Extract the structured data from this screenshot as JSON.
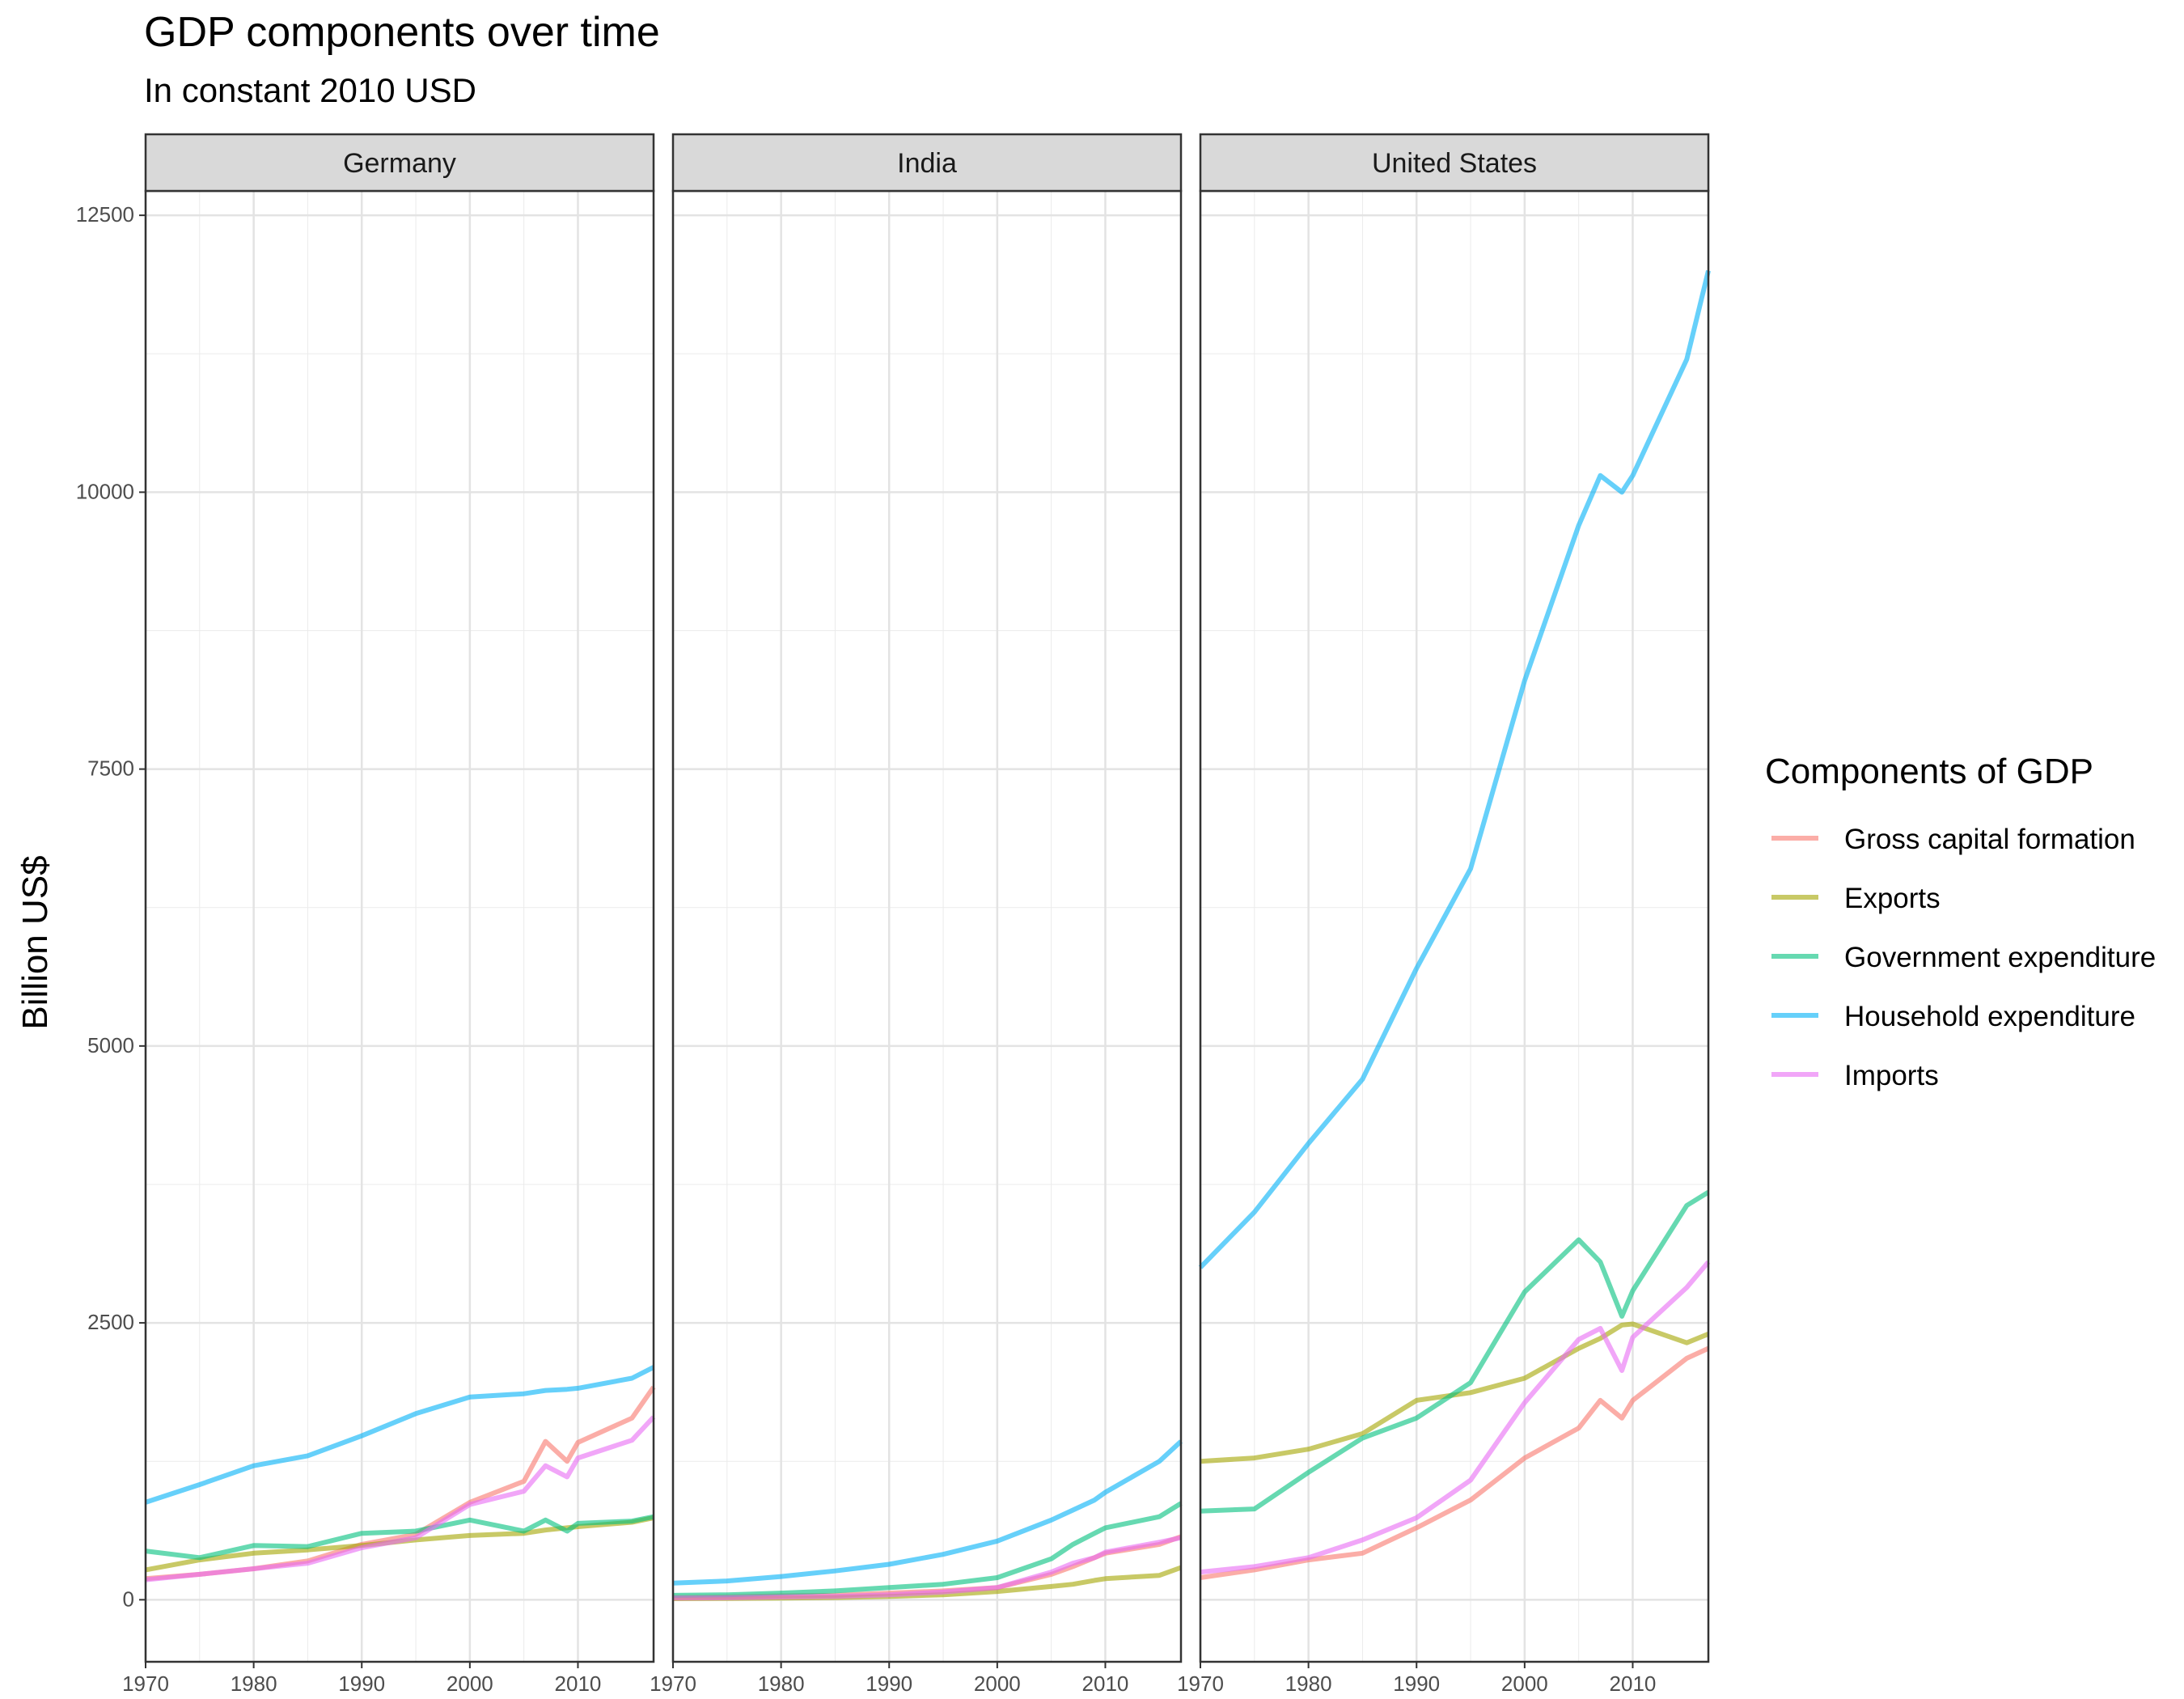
{
  "title": "GDP components over time",
  "subtitle": "In constant 2010 USD",
  "ylabel": "Billion US$",
  "legend": {
    "title": "Components of GDP",
    "position": "right",
    "items": [
      {
        "name": "Gross capital formation",
        "color": "#F8766D"
      },
      {
        "name": "Exports",
        "color": "#A3A500"
      },
      {
        "name": "Government expenditure",
        "color": "#00BF7D"
      },
      {
        "name": "Household expenditure",
        "color": "#00B0F6"
      },
      {
        "name": "Imports",
        "color": "#E76BF3"
      }
    ]
  },
  "chart_data": {
    "type": "line",
    "facets": [
      "Germany",
      "India",
      "United States"
    ],
    "xlim": [
      1970,
      2017
    ],
    "ylim": [
      -560,
      12720
    ],
    "xticks": [
      1970,
      1980,
      1990,
      2000,
      2010
    ],
    "yticks": [
      0,
      2500,
      5000,
      7500,
      10000,
      12500
    ],
    "grid": true,
    "line_opacity": 0.6,
    "x": [
      1970,
      1975,
      1980,
      1985,
      1990,
      1995,
      2000,
      2005,
      2007,
      2009,
      2010,
      2015,
      2017
    ],
    "panels": [
      {
        "facet": "Germany",
        "series": [
          {
            "name": "Gross capital formation",
            "values": [
              190,
              230,
              280,
              350,
              500,
              590,
              880,
              1070,
              1430,
              1250,
              1420,
              1640,
              1920
            ]
          },
          {
            "name": "Exports",
            "values": [
              270,
              360,
              420,
              450,
              490,
              540,
              580,
              600,
              630,
              650,
              660,
              700,
              740
            ]
          },
          {
            "name": "Government expenditure",
            "values": [
              440,
              380,
              490,
              480,
              600,
              620,
              720,
              620,
              720,
              620,
              690,
              710,
              750
            ]
          },
          {
            "name": "Household expenditure",
            "values": [
              880,
              1040,
              1210,
              1300,
              1480,
              1680,
              1830,
              1860,
              1890,
              1900,
              1910,
              2000,
              2100
            ]
          },
          {
            "name": "Imports",
            "values": [
              180,
              230,
              280,
              330,
              470,
              560,
              860,
              980,
              1210,
              1110,
              1280,
              1440,
              1650
            ]
          }
        ]
      },
      {
        "facet": "India",
        "series": [
          {
            "name": "Gross capital formation",
            "values": [
              20,
              25,
              35,
              40,
              60,
              80,
              110,
              230,
              300,
              380,
              420,
              500,
              570
            ]
          },
          {
            "name": "Exports",
            "values": [
              10,
              12,
              15,
              20,
              30,
              45,
              75,
              120,
              140,
              175,
              190,
              220,
              290
            ]
          },
          {
            "name": "Government expenditure",
            "values": [
              40,
              45,
              60,
              80,
              110,
              140,
              200,
              370,
              500,
              600,
              650,
              750,
              870
            ]
          },
          {
            "name": "Household expenditure",
            "values": [
              150,
              170,
              210,
              260,
              320,
              410,
              530,
              720,
              810,
              900,
              970,
              1250,
              1430
            ]
          },
          {
            "name": "Imports",
            "values": [
              15,
              18,
              25,
              30,
              45,
              70,
              110,
              250,
              330,
              380,
              430,
              520,
              560
            ]
          }
        ]
      },
      {
        "facet": "United States",
        "series": [
          {
            "name": "Gross capital formation",
            "values": [
              200,
              270,
              360,
              420,
              650,
              900,
              1280,
              1550,
              1800,
              1640,
              1800,
              2180,
              2270
            ]
          },
          {
            "name": "Exports",
            "values": [
              1250,
              1280,
              1360,
              1500,
              1800,
              1870,
              2000,
              2270,
              2360,
              2480,
              2490,
              2320,
              2400
            ]
          },
          {
            "name": "Government expenditure",
            "values": [
              800,
              820,
              1150,
              1460,
              1640,
              1960,
              2780,
              3250,
              3050,
              2560,
              2790,
              3560,
              3680
            ]
          },
          {
            "name": "Household expenditure",
            "values": [
              3000,
              3500,
              4120,
              4700,
              5700,
              6600,
              8300,
              9700,
              10150,
              10000,
              10150,
              11200,
              12000
            ]
          },
          {
            "name": "Imports",
            "values": [
              250,
              300,
              380,
              540,
              740,
              1080,
              1780,
              2350,
              2450,
              2070,
              2370,
              2820,
              3050
            ]
          }
        ]
      }
    ]
  }
}
